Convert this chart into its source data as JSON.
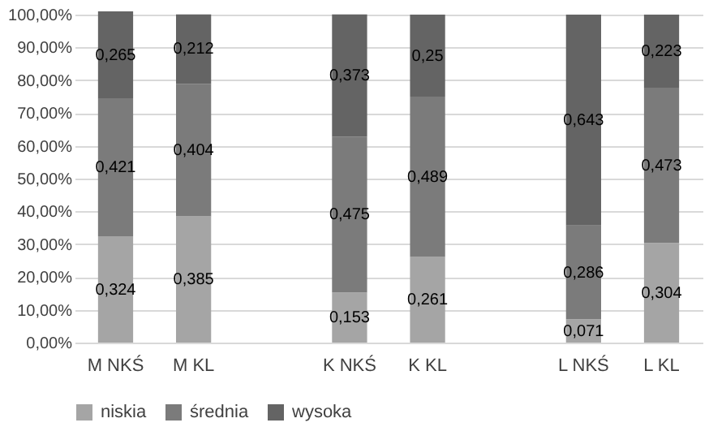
{
  "chart_data": {
    "type": "bar",
    "stacked": true,
    "categories": [
      "M NKŚ",
      "M KL",
      null,
      "K NKŚ",
      "K KL",
      null,
      "L NKŚ",
      "L KL"
    ],
    "series": [
      {
        "name": "niskia",
        "color": "#a5a5a5",
        "values": [
          0.324,
          0.385,
          null,
          0.153,
          0.261,
          null,
          0.071,
          0.304
        ],
        "value_labels": [
          "0,324",
          "0,385",
          null,
          "0,153",
          "0,261",
          null,
          "0,071",
          "0,304"
        ]
      },
      {
        "name": "średnia",
        "color": "#7b7b7b",
        "values": [
          0.421,
          0.404,
          null,
          0.475,
          0.489,
          null,
          0.286,
          0.473
        ],
        "value_labels": [
          "0,421",
          "0,404",
          null,
          "0,475",
          "0,489",
          null,
          "0,286",
          "0,473"
        ]
      },
      {
        "name": "wysoka",
        "color": "#646464",
        "values": [
          0.265,
          0.212,
          null,
          0.373,
          0.25,
          null,
          0.643,
          0.223
        ],
        "value_labels": [
          "0,265",
          "0,212",
          null,
          "0,373",
          "0,25",
          null,
          "0,643",
          "0,223"
        ]
      }
    ],
    "ylim": [
      0,
      1.01
    ],
    "yticks": [
      {
        "value": 0,
        "label": "0,00%"
      },
      {
        "value": 0.1,
        "label": "10,00%"
      },
      {
        "value": 0.2,
        "label": "20,00%"
      },
      {
        "value": 0.3,
        "label": "30,00%"
      },
      {
        "value": 0.4,
        "label": "40,00%"
      },
      {
        "value": 0.5,
        "label": "50,00%"
      },
      {
        "value": 0.6,
        "label": "60,00%"
      },
      {
        "value": 0.7,
        "label": "70,00%"
      },
      {
        "value": 0.8,
        "label": "80,00%"
      },
      {
        "value": 0.9,
        "label": "90,00%"
      },
      {
        "value": 1,
        "label": "100,00%"
      }
    ],
    "grid": "y",
    "legend": "bottom"
  }
}
